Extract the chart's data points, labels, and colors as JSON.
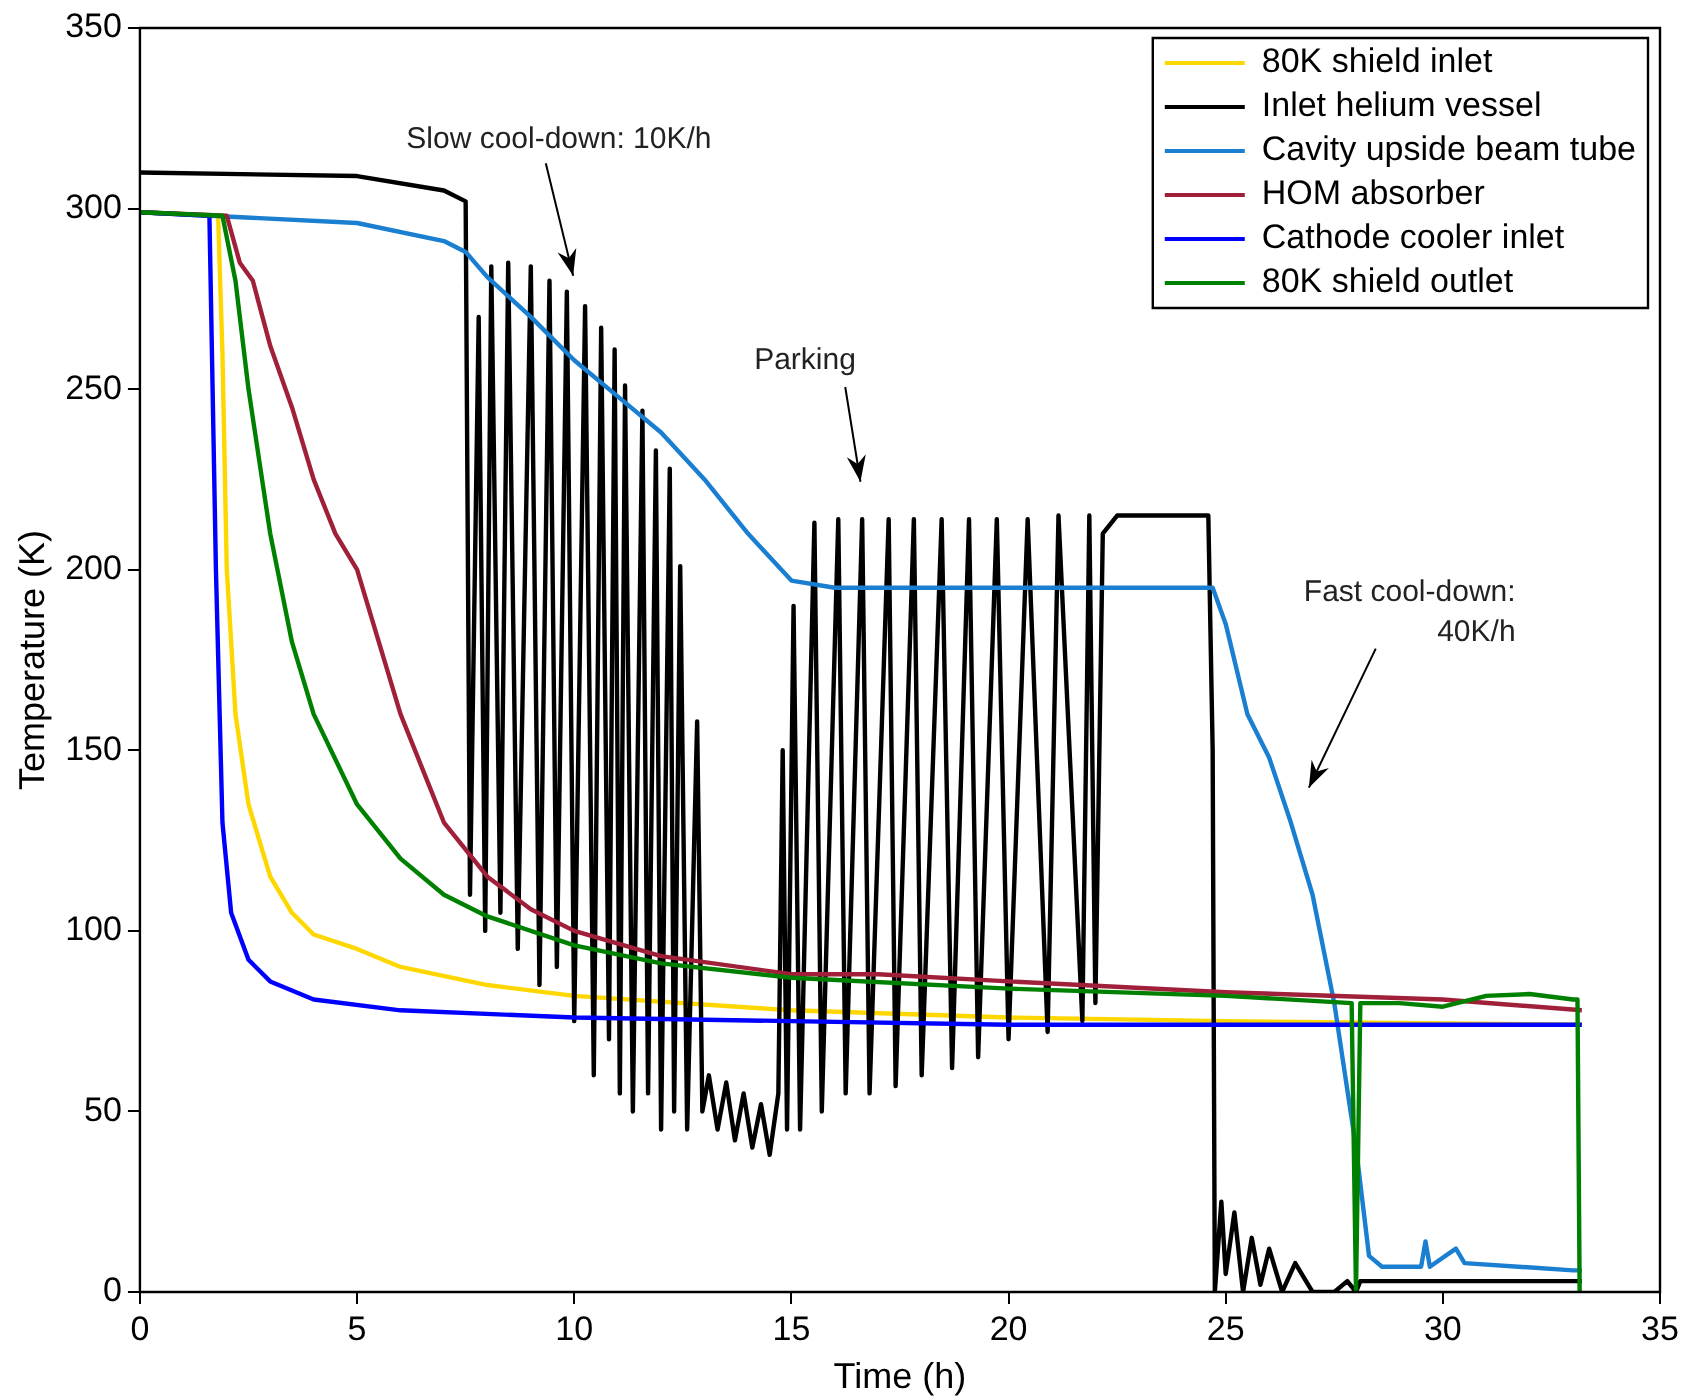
{
  "chart_data": {
    "type": "line",
    "xlabel": "Time (h)",
    "ylabel": "Temperature (K)",
    "xlim": [
      0,
      35
    ],
    "xticks": [
      0,
      5,
      10,
      15,
      20,
      25,
      30,
      35
    ],
    "ylim": [
      0,
      350
    ],
    "yticks": [
      0,
      50,
      100,
      150,
      200,
      250,
      300,
      350
    ],
    "legend": "top right",
    "annotations": [
      "Slow cool-down: 10K/h",
      "Parking",
      "Fast cool-down:\n40K/h"
    ],
    "series": [
      {
        "name": "80K shield inlet",
        "color": "#ffd700",
        "x": [
          0,
          1.8,
          1.9,
          2.0,
          2.2,
          2.5,
          3,
          3.5,
          4,
          5,
          6,
          8,
          10,
          15,
          20,
          25,
          33.2
        ],
        "values": [
          299,
          298,
          260,
          200,
          160,
          135,
          115,
          105,
          99,
          95,
          90,
          85,
          82,
          78,
          76,
          75,
          74
        ]
      },
      {
        "name": "Inlet helium vessel",
        "color": "#000000",
        "x": [
          0,
          5,
          7,
          7.5,
          7.6,
          7.8,
          7.95,
          8.09,
          8.3,
          8.48,
          8.7,
          9.0,
          9.2,
          9.43,
          9.6,
          9.83,
          10.0,
          10.25,
          10.45,
          10.62,
          10.8,
          10.93,
          11.05,
          11.17,
          11.35,
          11.57,
          11.7,
          11.88,
          12.0,
          12.2,
          12.3,
          12.44,
          12.6,
          12.83,
          12.95,
          13.1,
          13.3,
          13.5,
          13.7,
          13.9,
          14.1,
          14.3,
          14.5,
          14.7,
          14.8,
          14.9,
          15.05,
          15.2,
          15.53,
          15.7,
          16.08,
          16.25,
          16.63,
          16.8,
          17.24,
          17.4,
          17.82,
          18.0,
          18.46,
          18.7,
          19.09,
          19.3,
          19.73,
          20.0,
          20.44,
          20.9,
          21.15,
          21.7,
          21.86,
          22.0,
          22.17,
          22.5,
          24.6,
          24.7,
          24.75,
          24.9,
          25.0,
          25.2,
          25.4,
          25.6,
          25.8,
          26.0,
          26.3,
          26.6,
          27,
          27.5,
          27.8,
          28,
          28.1,
          30,
          33.2
        ],
        "values": [
          310,
          309,
          305,
          302,
          110,
          270,
          100,
          284,
          105,
          285,
          95,
          284,
          85,
          280,
          90,
          277,
          75,
          273,
          60,
          267,
          70,
          261,
          55,
          251,
          50,
          244,
          55,
          233,
          45,
          228,
          50,
          201,
          45,
          158,
          50,
          60,
          45,
          58,
          42,
          55,
          40,
          52,
          38,
          55,
          150,
          45,
          190,
          45,
          213,
          50,
          214,
          55,
          214,
          55,
          214,
          57,
          214,
          60,
          214,
          62,
          214,
          65,
          214,
          70,
          214,
          72,
          215,
          75,
          215,
          80,
          210,
          215,
          215,
          150,
          0,
          25,
          5,
          22,
          0,
          15,
          2,
          12,
          0,
          8,
          0,
          0,
          3,
          0,
          3,
          3,
          3
        ]
      },
      {
        "name": "Cavity upside beam tube",
        "color": "#1a7fd0",
        "x": [
          0,
          5,
          7,
          7.5,
          8,
          9,
          10,
          11,
          12,
          13,
          14,
          15,
          16,
          20,
          24.7,
          25,
          25.5,
          26,
          26.5,
          27,
          27.5,
          28,
          28.3,
          28.6,
          29.5,
          29.6,
          29.7,
          30.3,
          30.5,
          33,
          33.2
        ],
        "values": [
          299,
          296,
          291,
          288,
          281,
          270,
          258,
          248,
          238,
          225,
          210,
          197,
          195,
          195,
          195,
          185,
          160,
          148,
          130,
          110,
          80,
          40,
          10,
          7,
          7,
          14,
          7,
          12,
          8,
          6,
          6
        ]
      },
      {
        "name": "HOM absorber",
        "color": "#a0203a",
        "x": [
          0,
          2,
          2.3,
          2.6,
          3,
          3.5,
          4,
          4.5,
          5,
          5.5,
          6,
          6.5,
          7,
          8,
          9,
          10,
          12,
          15,
          17,
          20,
          25,
          30,
          33.2
        ],
        "values": [
          299,
          298,
          285,
          280,
          262,
          245,
          225,
          210,
          200,
          180,
          160,
          145,
          130,
          115,
          106,
          100,
          93,
          88,
          88,
          86,
          83,
          81,
          78
        ]
      },
      {
        "name": "Cathode cooler inlet",
        "color": "#0000ff",
        "x": [
          0,
          1.6,
          1.75,
          1.9,
          2.1,
          2.5,
          3,
          4,
          6,
          10,
          15,
          20,
          33.2
        ],
        "values": [
          299,
          298,
          200,
          130,
          105,
          92,
          86,
          81,
          78,
          76,
          75,
          74,
          74
        ]
      },
      {
        "name": "80K shield outlet",
        "color": "#008000",
        "x": [
          0,
          1.9,
          2.2,
          2.5,
          3,
          3.5,
          4,
          5,
          6,
          7,
          8,
          10,
          12,
          15,
          20,
          25,
          27.9,
          28,
          28.1,
          29,
          30,
          31,
          32,
          33,
          33.1,
          33.15
        ],
        "values": [
          299,
          298,
          280,
          250,
          210,
          180,
          160,
          135,
          120,
          110,
          104,
          96,
          91,
          87,
          84,
          82,
          80,
          0,
          80,
          80,
          79,
          82,
          82.5,
          81,
          81,
          0
        ]
      }
    ]
  }
}
